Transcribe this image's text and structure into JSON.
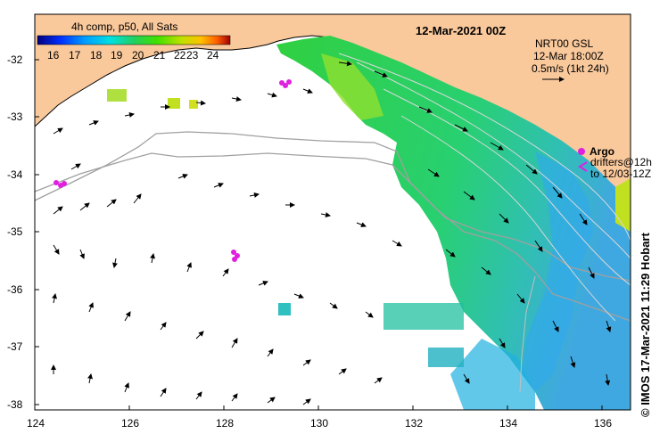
{
  "header": {
    "composite_label": "4h comp, p50, All Sats",
    "date_label": "12-Mar-2021 00Z"
  },
  "colorbar": {
    "ticks": [
      "16",
      "17",
      "18",
      "19",
      "20",
      "21",
      "22",
      "23",
      "24"
    ],
    "colors": [
      "#000080",
      "#0030ff",
      "#00a0ff",
      "#00e0e0",
      "#20d060",
      "#40e000",
      "#c0e000",
      "#ffc000",
      "#ff6000",
      "#a00000"
    ]
  },
  "current_legend": {
    "line1": "NRT00 GSL",
    "line2": "12-Mar 18:00Z",
    "line3": "0.5m/s (1kt 24h)"
  },
  "argo_legend": {
    "argo": "Argo",
    "drifters": "drifters@12h",
    "drifters_to": "to 12/03-12Z"
  },
  "axes": {
    "lat_ticks": [
      "-32",
      "-33",
      "-34",
      "-35",
      "-36",
      "-37",
      "-38"
    ],
    "lon_ticks": [
      "124",
      "126",
      "128",
      "130",
      "132",
      "134",
      "136"
    ]
  },
  "credit": "© IMOS 17-Mar-2021 11:29 Hobart",
  "colors": {
    "land": "#f9c89b",
    "ocean_nodata": "#ffffff",
    "argo_marker": "#e020e0",
    "contour": "#a0a0a0"
  }
}
